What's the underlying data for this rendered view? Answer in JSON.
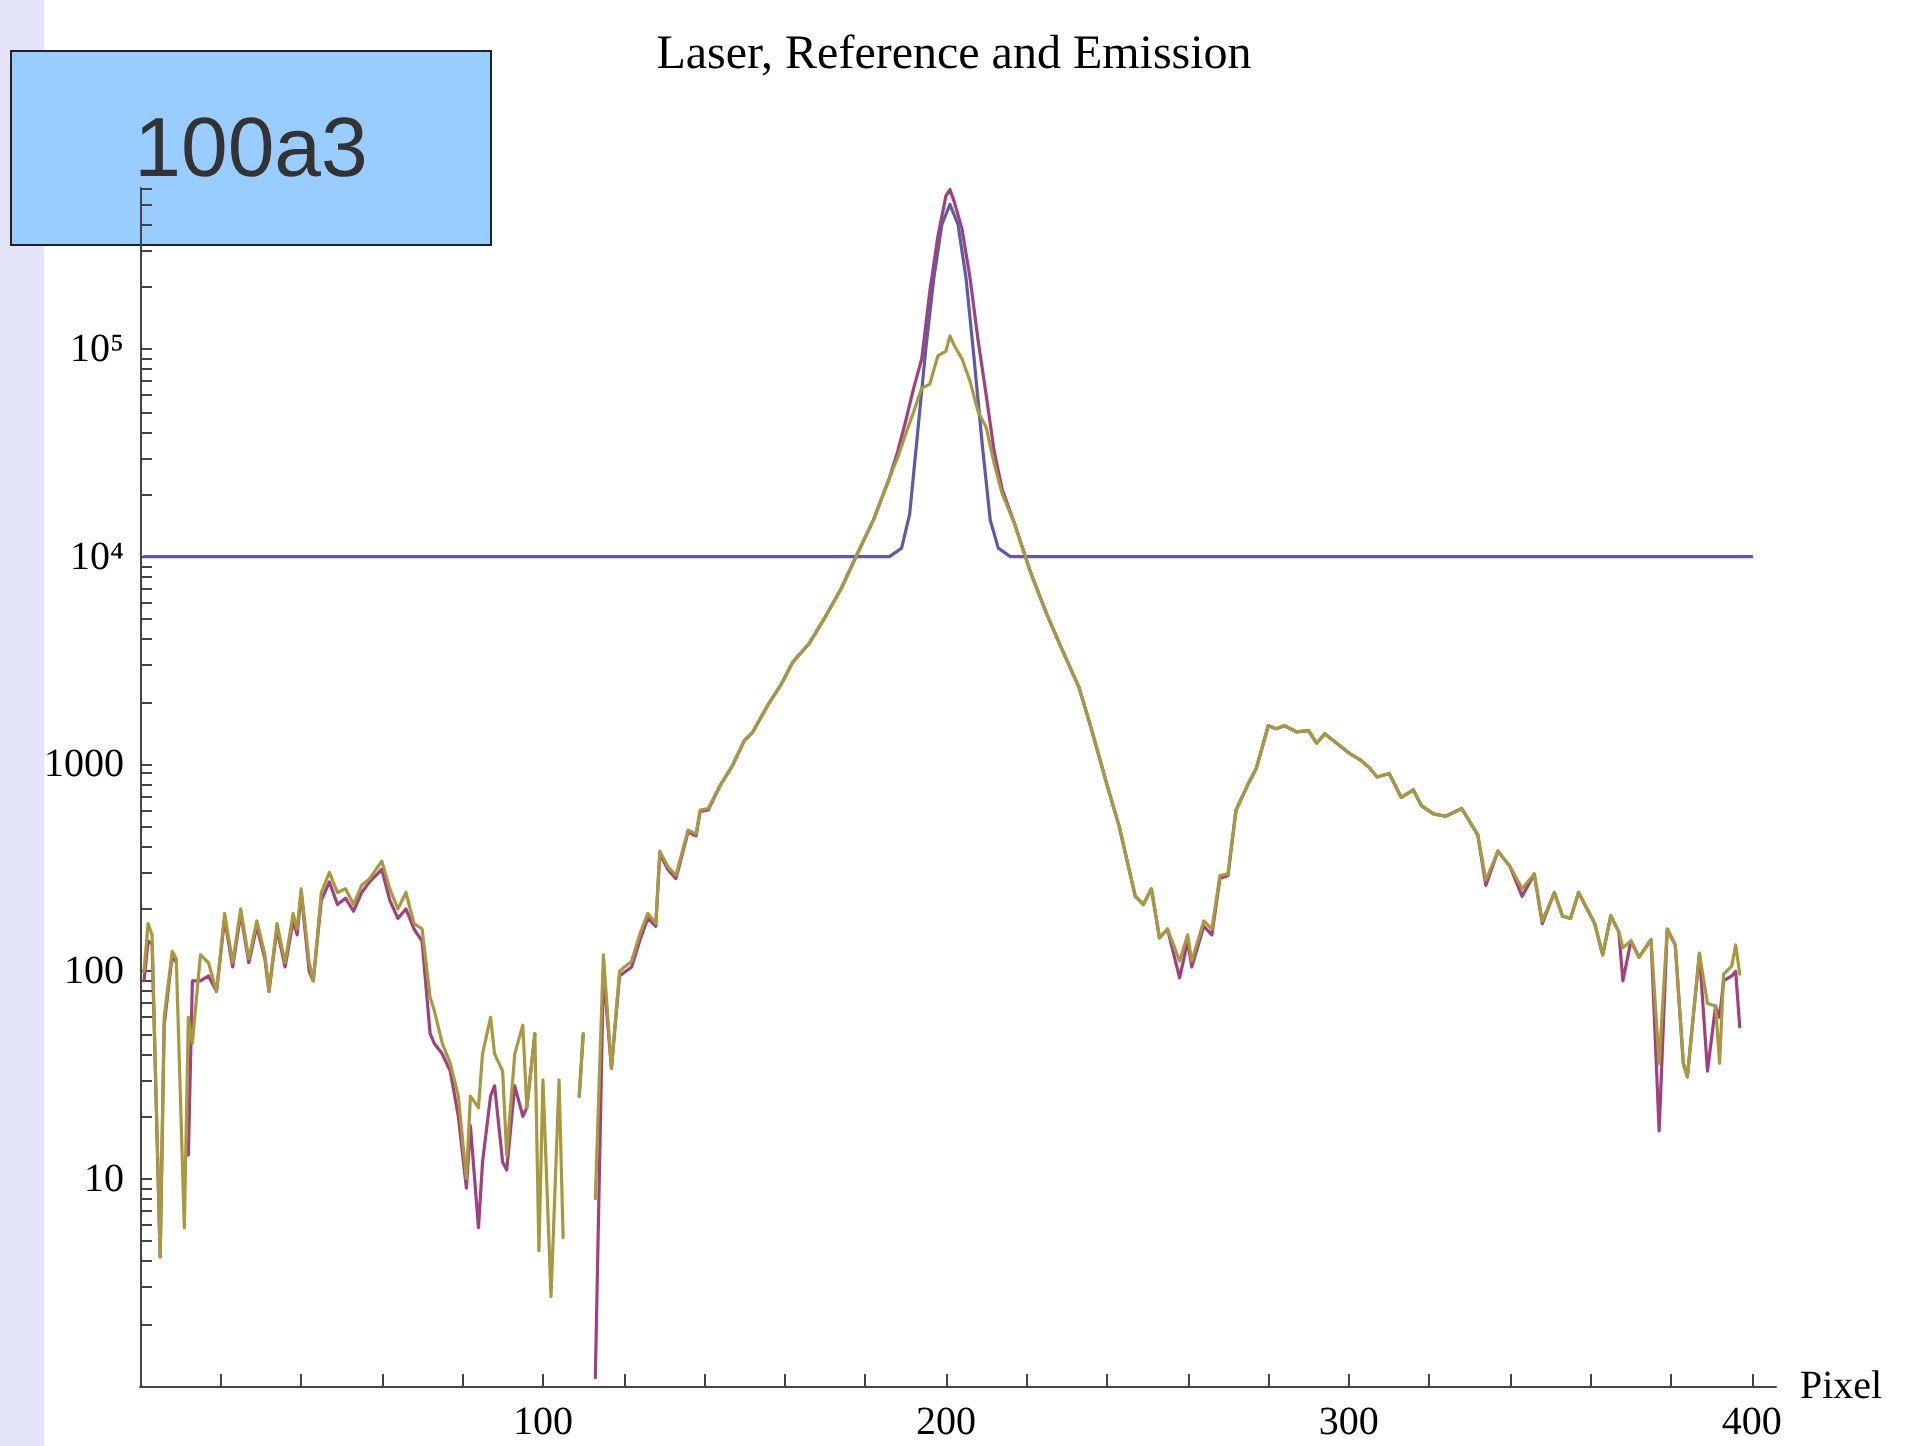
{
  "chart_data": {
    "type": "line",
    "title": "Laser, Reference and Emission",
    "xlabel": "Pixel",
    "annotations": [
      "100a3"
    ],
    "log": "y",
    "xlim": [
      0,
      406
    ],
    "ylim": [
      1,
      600000
    ],
    "xticks": [
      {
        "value": 20,
        "label": null
      },
      {
        "value": 40,
        "label": null
      },
      {
        "value": 60,
        "label": null
      },
      {
        "value": 80,
        "label": null
      },
      100,
      {
        "value": 120,
        "label": null
      },
      {
        "value": 140,
        "label": null
      },
      {
        "value": 160,
        "label": null
      },
      {
        "value": 180,
        "label": null
      },
      200,
      {
        "value": 220,
        "label": null
      },
      {
        "value": 240,
        "label": null
      },
      {
        "value": 260,
        "label": null
      },
      {
        "value": 280,
        "label": null
      },
      300,
      {
        "value": 320,
        "label": null
      },
      {
        "value": 340,
        "label": null
      },
      {
        "value": 360,
        "label": null
      },
      {
        "value": 380,
        "label": null
      },
      400
    ],
    "yticks": [
      {
        "value": 2,
        "label": null
      },
      {
        "value": 3,
        "label": null
      },
      {
        "value": 4,
        "label": null
      },
      {
        "value": 5,
        "label": null
      },
      {
        "value": 6,
        "label": null
      },
      {
        "value": 7,
        "label": null
      },
      {
        "value": 8,
        "label": null
      },
      {
        "value": 9,
        "label": null
      },
      10,
      {
        "value": 20,
        "label": null
      },
      {
        "value": 30,
        "label": null
      },
      {
        "value": 40,
        "label": null
      },
      {
        "value": 50,
        "label": null
      },
      {
        "value": 60,
        "label": null
      },
      {
        "value": 70,
        "label": null
      },
      {
        "value": 80,
        "label": null
      },
      {
        "value": 90,
        "label": null
      },
      100,
      {
        "value": 200,
        "label": null
      },
      {
        "value": 300,
        "label": null
      },
      {
        "value": 400,
        "label": null
      },
      {
        "value": 500,
        "label": null
      },
      {
        "value": 600,
        "label": null
      },
      {
        "value": 700,
        "label": null
      },
      {
        "value": 800,
        "label": null
      },
      {
        "value": 900,
        "label": null
      },
      1000,
      {
        "value": 2000,
        "label": null
      },
      {
        "value": 3000,
        "label": null
      },
      {
        "value": 4000,
        "label": null
      },
      {
        "value": 5000,
        "label": null
      },
      {
        "value": 6000,
        "label": null
      },
      {
        "value": 7000,
        "label": null
      },
      {
        "value": 8000,
        "label": null
      },
      {
        "value": 9000,
        "label": null
      },
      {
        "value": 10000,
        "label": "10⁴"
      },
      {
        "value": 20000,
        "label": null
      },
      {
        "value": 30000,
        "label": null
      },
      {
        "value": 40000,
        "label": null
      },
      {
        "value": 50000,
        "label": null
      },
      {
        "value": 60000,
        "label": null
      },
      {
        "value": 70000,
        "label": null
      },
      {
        "value": 80000,
        "label": null
      },
      {
        "value": 90000,
        "label": null
      },
      {
        "value": 100000,
        "label": "10⁵"
      },
      {
        "value": 200000,
        "label": null
      },
      {
        "value": 300000,
        "label": null
      },
      {
        "value": 400000,
        "label": null
      },
      {
        "value": 500000,
        "label": null
      },
      {
        "value": 600000,
        "label": null
      }
    ],
    "series": [
      {
        "color": "#5b5ba8",
        "x": [
          1,
          50,
          100,
          150,
          186,
          189,
          191,
          193,
          195,
          197,
          199,
          201,
          203,
          205,
          207,
          209,
          211,
          213,
          216,
          250,
          300,
          350,
          400
        ],
        "values": [
          10000,
          10000,
          10000,
          10000,
          10000,
          11000,
          16000,
          40000,
          100000,
          220000,
          400000,
          500000,
          400000,
          220000,
          90000,
          35000,
          15000,
          11000,
          10000,
          10000,
          10000,
          10000,
          10000
        ]
      },
      {
        "color": "#a0407f",
        "x": [
          1,
          2,
          3,
          5,
          6,
          8,
          9,
          11,
          12,
          13,
          15,
          17,
          19,
          21,
          23,
          25,
          27,
          29,
          31,
          32,
          34,
          36,
          38,
          39,
          40,
          42,
          43,
          45,
          47,
          49,
          51,
          53,
          55,
          57,
          60,
          62,
          64,
          66,
          68,
          70,
          72,
          73,
          75,
          77,
          79,
          81,
          82,
          84,
          85,
          87,
          88,
          90,
          91,
          93,
          95,
          96,
          98,
          99,
          100,
          102,
          104,
          105,
          107,
          109,
          110,
          111,
          113,
          115,
          117,
          119,
          122,
          124,
          126,
          128,
          129,
          131,
          133,
          136,
          138,
          139,
          141,
          144,
          147,
          150,
          152,
          156,
          159,
          162,
          166,
          170,
          174,
          178,
          182,
          186,
          188,
          190,
          192,
          194,
          196,
          198,
          200,
          201,
          202,
          204,
          206,
          208,
          210,
          212,
          214,
          217,
          221,
          225,
          229,
          233,
          236,
          240,
          243,
          247,
          249,
          251,
          253,
          255,
          258,
          260,
          261,
          264,
          266,
          268,
          270,
          272,
          275,
          277,
          280,
          282,
          284,
          287,
          290,
          292,
          294,
          297,
          300,
          303,
          305,
          307,
          310,
          313,
          316,
          318,
          321,
          324,
          328,
          332,
          334,
          337,
          340,
          343,
          346,
          348,
          351,
          353,
          355,
          357,
          361,
          363,
          365,
          367,
          368,
          370,
          372,
          375,
          377,
          379,
          381,
          383,
          384,
          387,
          389,
          391,
          392,
          393,
          395,
          396,
          397
        ],
        "values": [
          90,
          140,
          135,
          4.2,
          55,
          120,
          110,
          null,
          13,
          90,
          90,
          95,
          80,
          180,
          105,
          190,
          110,
          165,
          115,
          80,
          160,
          105,
          175,
          150,
          240,
          100,
          90,
          220,
          270,
          210,
          225,
          195,
          240,
          270,
          310,
          220,
          180,
          200,
          160,
          140,
          50,
          45,
          40,
          33,
          20,
          9,
          18,
          5.8,
          12,
          25,
          28,
          12,
          11,
          28,
          20,
          22,
          50,
          null,
          null,
          null,
          null,
          null,
          null,
          25,
          50,
          null,
          1.1,
          100,
          34,
          95,
          105,
          140,
          180,
          165,
          370,
          310,
          280,
          470,
          450,
          590,
          600,
          790,
          980,
          1300,
          1420,
          1950,
          2400,
          3100,
          3800,
          5100,
          7000,
          10300,
          15000,
          24000,
          32000,
          45000,
          65000,
          90000,
          190000,
          350000,
          550000,
          590000,
          520000,
          380000,
          220000,
          110000,
          60000,
          32000,
          21000,
          14500,
          8400,
          5300,
          3500,
          2350,
          1500,
          790,
          500,
          230,
          210,
          250,
          145,
          160,
          93,
          140,
          105,
          165,
          150,
          280,
          290,
          600,
          800,
          950,
          1530,
          1480,
          1530,
          1430,
          1450,
          1260,
          1400,
          1260,
          1130,
          1040,
          965,
          865,
          900,
          690,
          750,
          630,
          575,
          560,
          610,
          455,
          260,
          380,
          320,
          230,
          295,
          170,
          240,
          185,
          180,
          240,
          170,
          120,
          185,
          155,
          90,
          140,
          117,
          142,
          17,
          160,
          134,
          36,
          31,
          122,
          33,
          68,
          60,
          90,
          95,
          100,
          54
        ]
      },
      {
        "color": "#a8983e",
        "x": [
          1,
          2,
          3,
          5,
          6,
          8,
          9,
          11,
          12,
          13,
          15,
          17,
          19,
          21,
          23,
          25,
          27,
          29,
          31,
          32,
          34,
          36,
          38,
          39,
          40,
          42,
          43,
          45,
          47,
          49,
          51,
          53,
          55,
          57,
          60,
          62,
          64,
          66,
          68,
          70,
          72,
          73,
          75,
          77,
          79,
          81,
          82,
          84,
          85,
          87,
          88,
          90,
          91,
          93,
          95,
          96,
          98,
          99,
          100,
          102,
          104,
          105,
          107,
          109,
          110,
          111,
          113,
          115,
          117,
          119,
          122,
          124,
          126,
          128,
          129,
          131,
          133,
          136,
          138,
          139,
          141,
          144,
          147,
          150,
          152,
          156,
          159,
          162,
          166,
          170,
          174,
          178,
          182,
          186,
          188,
          190,
          192,
          194,
          196,
          198,
          200,
          201,
          202,
          204,
          206,
          208,
          210,
          212,
          214,
          217,
          221,
          225,
          229,
          233,
          236,
          240,
          243,
          247,
          249,
          251,
          253,
          255,
          258,
          260,
          261,
          264,
          266,
          268,
          270,
          272,
          275,
          277,
          280,
          282,
          284,
          287,
          290,
          292,
          294,
          297,
          300,
          303,
          305,
          307,
          310,
          313,
          316,
          318,
          321,
          324,
          328,
          332,
          334,
          337,
          340,
          343,
          346,
          348,
          351,
          353,
          355,
          357,
          361,
          363,
          365,
          367,
          368,
          370,
          372,
          375,
          377,
          379,
          381,
          383,
          384,
          387,
          389,
          391,
          392,
          393,
          395,
          396,
          397
        ],
        "values": [
          100,
          170,
          150,
          4.2,
          60,
          125,
          115,
          5.8,
          60,
          45,
          120,
          110,
          80,
          190,
          110,
          200,
          115,
          175,
          120,
          80,
          170,
          110,
          190,
          160,
          250,
          110,
          90,
          240,
          300,
          240,
          250,
          210,
          260,
          280,
          340,
          250,
          200,
          240,
          170,
          160,
          75,
          65,
          45,
          36,
          25,
          10,
          25,
          22,
          40,
          60,
          40,
          33,
          13,
          40,
          55,
          22,
          50,
          4.5,
          30,
          2.7,
          30,
          5.2,
          null,
          25,
          50,
          null,
          8,
          120,
          34,
          100,
          112,
          150,
          190,
          170,
          380,
          320,
          290,
          480,
          460,
          600,
          610,
          790,
          980,
          1300,
          1420,
          1950,
          2400,
          3100,
          3800,
          5100,
          7000,
          10300,
          15000,
          24000,
          30000,
          39000,
          50000,
          65000,
          68000,
          93000,
          98000,
          116000,
          105000,
          90000,
          70000,
          50000,
          42000,
          28000,
          20000,
          14500,
          8400,
          5300,
          3500,
          2350,
          1500,
          790,
          500,
          230,
          210,
          250,
          145,
          160,
          112,
          150,
          112,
          175,
          160,
          290,
          295,
          600,
          800,
          950,
          1530,
          1480,
          1530,
          1430,
          1450,
          1260,
          1400,
          1260,
          1130,
          1040,
          965,
          865,
          900,
          690,
          750,
          630,
          575,
          560,
          610,
          455,
          275,
          380,
          320,
          250,
          295,
          175,
          240,
          185,
          180,
          240,
          170,
          120,
          185,
          155,
          130,
          140,
          117,
          142,
          36,
          160,
          134,
          36,
          31,
          122,
          70,
          68,
          36,
          97,
          106,
          134,
          97
        ]
      }
    ]
  }
}
